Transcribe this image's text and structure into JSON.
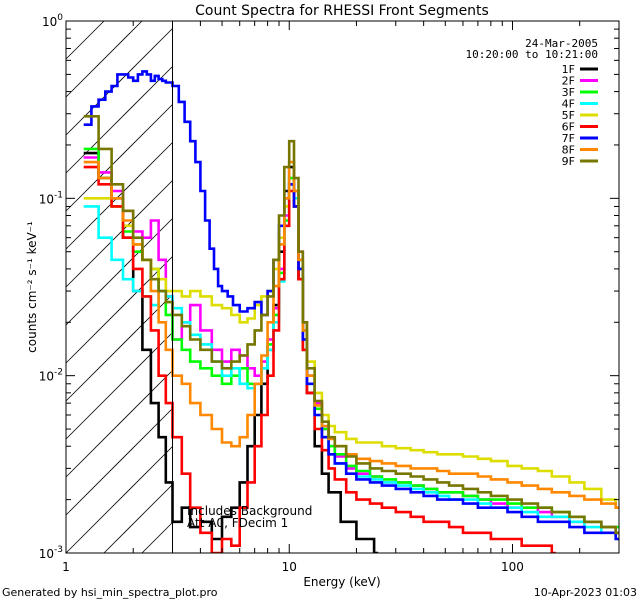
{
  "chart_data": {
    "type": "line",
    "title": "Count Spectra for RHESSI Front Segments",
    "date": "24-Mar-2005",
    "time_range": "10:20:00 to 10:21:00",
    "xlabel": "Energy (keV)",
    "ylabel": "counts cm⁻² s⁻¹ keV⁻¹",
    "xscale": "log",
    "yscale": "log",
    "xlim": [
      1,
      300
    ],
    "ylim": [
      0.001,
      1
    ],
    "x_tick_labels": [
      {
        "value": 1,
        "label": "1"
      },
      {
        "value": 10,
        "label": "10"
      },
      {
        "value": 100,
        "label": "100"
      }
    ],
    "y_tick_labels": [
      {
        "exp": 0,
        "mantissa": "10",
        "sup": "0"
      },
      {
        "exp": -1,
        "mantissa": "10",
        "sup": "-1"
      },
      {
        "exp": -2,
        "mantissa": "10",
        "sup": "-2"
      },
      {
        "exp": -3,
        "mantissa": "10",
        "sup": "-3"
      }
    ],
    "excluded_region": {
      "x_max": 3.0,
      "hatched": true
    },
    "annotations": [
      "Includes Background",
      "Att A0, FDecim 1"
    ],
    "footer_left": "Generated by hsi_min_spectra_plot.pro",
    "footer_right": "10-Apr-2023 01:03",
    "legend_position": "top-right",
    "series": [
      {
        "name": "1F",
        "color": "#000000",
        "x": [
          1.2,
          1.4,
          1.6,
          1.8,
          2.0,
          2.2,
          2.4,
          2.6,
          2.8,
          3.0,
          3.3,
          3.6,
          4.0,
          4.5,
          5.0,
          5.5,
          6.0,
          6.5,
          7.0,
          7.5,
          8.0,
          8.5,
          9.0,
          9.5,
          10.0,
          10.5,
          11.0,
          11.5,
          12.0,
          13.0,
          14.0,
          15.0,
          17.0,
          20.0,
          24.0
        ],
        "y": [
          0.18,
          0.13,
          0.1,
          0.06,
          0.03,
          0.014,
          0.007,
          0.0045,
          0.0025,
          0.0015,
          0.0018,
          0.0014,
          0.0015,
          0.0012,
          0.0016,
          0.0018,
          0.0025,
          0.004,
          0.006,
          0.009,
          0.014,
          0.025,
          0.05,
          0.11,
          0.15,
          0.09,
          0.035,
          0.014,
          0.008,
          0.004,
          0.0028,
          0.0022,
          0.0015,
          0.0012,
          0.001
        ]
      },
      {
        "name": "2F",
        "color": "#ff00ff",
        "x": [
          1.2,
          1.4,
          1.6,
          1.8,
          2.0,
          2.2,
          2.4,
          2.6,
          2.8,
          3.0,
          3.3,
          3.6,
          4.0,
          4.5,
          5.0,
          5.5,
          6.0,
          6.5,
          7.0,
          7.5,
          8.0,
          8.5,
          9.0,
          9.5,
          10.0,
          10.5,
          11.0,
          11.5,
          12.0,
          13.0,
          14.0,
          15.0,
          16.0,
          18.0,
          20.0,
          23.0,
          26.0,
          30.0,
          35.0,
          40.0,
          46.0,
          52.0,
          60.0,
          70.0,
          80.0,
          95.0,
          110.0,
          130.0,
          150.0,
          180.0,
          210.0,
          250.0,
          290.0
        ],
        "y": [
          0.17,
          0.14,
          0.11,
          0.085,
          0.065,
          0.06,
          0.075,
          0.045,
          0.028,
          0.016,
          0.02,
          0.025,
          0.018,
          0.014,
          0.012,
          0.014,
          0.013,
          0.011,
          0.01,
          0.012,
          0.016,
          0.024,
          0.04,
          0.08,
          0.12,
          0.11,
          0.05,
          0.02,
          0.01,
          0.007,
          0.005,
          0.004,
          0.0035,
          0.003,
          0.0028,
          0.0027,
          0.0025,
          0.0025,
          0.0024,
          0.0023,
          0.0022,
          0.0022,
          0.0021,
          0.002,
          0.0019,
          0.0018,
          0.0018,
          0.0017,
          0.0016,
          0.0015,
          0.0015,
          0.0014,
          0.0013
        ]
      },
      {
        "name": "3F",
        "color": "#00ff00",
        "x": [
          1.2,
          1.4,
          1.6,
          1.8,
          2.0,
          2.2,
          2.4,
          2.6,
          2.8,
          3.0,
          3.3,
          3.6,
          4.0,
          4.5,
          5.0,
          5.5,
          6.0,
          6.5,
          7.0,
          7.5,
          8.0,
          8.5,
          9.0,
          9.5,
          10.0,
          10.5,
          11.0,
          11.5,
          12.0,
          13.0,
          14.0,
          15.0,
          16.0,
          18.0,
          20.0,
          23.0,
          26.0,
          30.0,
          35.0,
          40.0,
          46.0,
          52.0,
          60.0,
          70.0,
          80.0,
          95.0,
          110.0,
          130.0,
          150.0,
          180.0,
          210.0,
          250.0,
          290.0
        ],
        "y": [
          0.19,
          0.13,
          0.09,
          0.065,
          0.05,
          0.045,
          0.04,
          0.03,
          0.022,
          0.016,
          0.014,
          0.012,
          0.011,
          0.01,
          0.009,
          0.01,
          0.011,
          0.009,
          0.009,
          0.011,
          0.015,
          0.022,
          0.038,
          0.075,
          0.13,
          0.11,
          0.045,
          0.018,
          0.01,
          0.0065,
          0.005,
          0.004,
          0.0036,
          0.0031,
          0.0029,
          0.0027,
          0.0026,
          0.0025,
          0.0024,
          0.0023,
          0.0022,
          0.0022,
          0.0021,
          0.002,
          0.002,
          0.0019,
          0.0018,
          0.0018,
          0.0017,
          0.0016,
          0.0015,
          0.0014,
          0.0014
        ]
      },
      {
        "name": "4F",
        "color": "#00ffff",
        "x": [
          1.2,
          1.4,
          1.6,
          1.8,
          2.0,
          2.2,
          2.4,
          2.6,
          2.8,
          3.0,
          3.3,
          3.6,
          4.0,
          4.5,
          5.0,
          5.5,
          6.0,
          6.5,
          7.0,
          7.5,
          8.0,
          8.5,
          9.0,
          9.5,
          10.0,
          10.5,
          11.0,
          11.5,
          12.0,
          13.0,
          14.0,
          15.0,
          16.0,
          18.0,
          20.0,
          23.0,
          26.0,
          30.0,
          35.0,
          40.0,
          46.0,
          52.0,
          60.0,
          70.0,
          80.0,
          95.0,
          110.0,
          130.0,
          150.0,
          180.0,
          210.0,
          250.0
        ],
        "y": [
          0.09,
          0.06,
          0.045,
          0.035,
          0.03,
          0.028,
          0.025,
          0.03,
          0.028,
          0.024,
          0.02,
          0.017,
          0.015,
          0.012,
          0.01,
          0.011,
          0.009,
          0.0085,
          0.009,
          0.011,
          0.014,
          0.02,
          0.034,
          0.07,
          0.12,
          0.1,
          0.04,
          0.016,
          0.009,
          0.006,
          0.0045,
          0.0036,
          0.0032,
          0.0028,
          0.0027,
          0.0026,
          0.0025,
          0.0024,
          0.0023,
          0.0022,
          0.0021,
          0.002,
          0.002,
          0.0019,
          0.0018,
          0.0018,
          0.0017,
          0.0016,
          0.0016,
          0.0015,
          0.0014,
          0.0013
        ]
      },
      {
        "name": "5F",
        "color": "#dddd00",
        "x": [
          1.2,
          1.4,
          1.6,
          1.8,
          2.0,
          2.2,
          2.4,
          2.6,
          2.8,
          3.0,
          3.3,
          3.6,
          4.0,
          4.5,
          5.0,
          5.5,
          6.0,
          6.5,
          7.0,
          7.5,
          8.0,
          8.5,
          9.0,
          9.5,
          10.0,
          10.5,
          11.0,
          11.5,
          12.0,
          13.0,
          14.0,
          15.0,
          16.0,
          18.0,
          20.0,
          23.0,
          26.0,
          30.0,
          35.0,
          40.0,
          46.0,
          52.0,
          60.0,
          70.0,
          80.0,
          95.0,
          110.0,
          130.0,
          150.0,
          180.0,
          210.0,
          250.0,
          290.0
        ],
        "y": [
          0.1,
          0.1,
          0.09,
          0.07,
          0.055,
          0.045,
          0.04,
          0.035,
          0.03,
          0.03,
          0.028,
          0.03,
          0.028,
          0.025,
          0.024,
          0.022,
          0.02,
          0.021,
          0.025,
          0.028,
          0.03,
          0.04,
          0.06,
          0.09,
          0.11,
          0.09,
          0.045,
          0.02,
          0.012,
          0.008,
          0.006,
          0.0052,
          0.0048,
          0.0044,
          0.0042,
          0.0042,
          0.004,
          0.0039,
          0.0038,
          0.0037,
          0.0036,
          0.0036,
          0.0035,
          0.0034,
          0.0033,
          0.0031,
          0.003,
          0.0029,
          0.0027,
          0.0025,
          0.0023,
          0.002,
          0.0018
        ]
      },
      {
        "name": "6F",
        "color": "#ff0000",
        "x": [
          1.2,
          1.4,
          1.6,
          1.8,
          2.0,
          2.2,
          2.4,
          2.6,
          2.8,
          3.0,
          3.3,
          3.6,
          4.0,
          4.5,
          5.0,
          5.5,
          6.0,
          6.5,
          7.0,
          7.5,
          8.0,
          8.5,
          9.0,
          9.5,
          10.0,
          10.5,
          11.0,
          11.5,
          12.0,
          13.0,
          14.0,
          15.0,
          16.0,
          18.0,
          20.0,
          23.0,
          26.0,
          30.0,
          35.0,
          40.0,
          46.0,
          52.0,
          60.0,
          70.0,
          80.0,
          95.0,
          110.0,
          130.0,
          150.0
        ],
        "y": [
          0.15,
          0.12,
          0.09,
          0.06,
          0.04,
          0.028,
          0.018,
          0.01,
          0.007,
          0.0045,
          0.0028,
          0.0018,
          0.0013,
          0.001,
          0.0012,
          0.0011,
          0.0018,
          0.0025,
          0.004,
          0.006,
          0.01,
          0.018,
          0.035,
          0.07,
          0.11,
          0.09,
          0.035,
          0.014,
          0.008,
          0.005,
          0.0038,
          0.003,
          0.0026,
          0.0022,
          0.002,
          0.0019,
          0.0018,
          0.0017,
          0.0016,
          0.0015,
          0.0015,
          0.0014,
          0.0013,
          0.0013,
          0.0012,
          0.0012,
          0.0011,
          0.0011,
          0.001
        ]
      },
      {
        "name": "7F",
        "color": "#0000ff",
        "x": [
          1.2,
          1.3,
          1.4,
          1.5,
          1.6,
          1.7,
          1.8,
          1.9,
          2.0,
          2.1,
          2.2,
          2.3,
          2.4,
          2.5,
          2.6,
          2.7,
          2.8,
          3.0,
          3.2,
          3.4,
          3.6,
          3.8,
          4.0,
          4.2,
          4.4,
          4.6,
          4.8,
          5.0,
          5.3,
          5.6,
          6.0,
          6.5,
          7.0,
          7.5,
          8.0,
          8.5,
          9.0,
          9.5,
          10.0,
          10.5,
          11.0,
          11.5,
          12.0,
          13.0,
          14.0,
          15.0,
          16.0,
          18.0,
          20.0,
          23.0,
          26.0,
          30.0,
          35.0,
          40.0,
          46.0,
          52.0,
          60.0,
          70.0,
          80.0,
          95.0,
          110.0,
          130.0,
          150.0,
          180.0,
          210.0,
          250.0,
          290.0
        ],
        "y": [
          0.26,
          0.33,
          0.36,
          0.4,
          0.43,
          0.5,
          0.5,
          0.48,
          0.46,
          0.5,
          0.52,
          0.5,
          0.46,
          0.49,
          0.47,
          0.46,
          0.45,
          0.43,
          0.35,
          0.27,
          0.21,
          0.16,
          0.11,
          0.075,
          0.052,
          0.04,
          0.032,
          0.03,
          0.028,
          0.025,
          0.023,
          0.024,
          0.026,
          0.022,
          0.03,
          0.045,
          0.07,
          0.1,
          0.12,
          0.09,
          0.04,
          0.016,
          0.009,
          0.006,
          0.0045,
          0.0036,
          0.0032,
          0.0028,
          0.0026,
          0.0025,
          0.0024,
          0.0023,
          0.0022,
          0.0021,
          0.002,
          0.002,
          0.0019,
          0.0018,
          0.0018,
          0.0017,
          0.0016,
          0.0015,
          0.0015,
          0.0014,
          0.0013,
          0.0013,
          0.0012
        ]
      },
      {
        "name": "8F",
        "color": "#ff8800",
        "x": [
          1.2,
          1.4,
          1.6,
          1.8,
          2.0,
          2.2,
          2.4,
          2.6,
          2.8,
          3.0,
          3.3,
          3.6,
          4.0,
          4.5,
          5.0,
          5.5,
          6.0,
          6.5,
          7.0,
          7.5,
          8.0,
          8.5,
          9.0,
          9.5,
          10.0,
          10.5,
          11.0,
          11.5,
          12.0,
          13.0,
          14.0,
          15.0,
          16.0,
          18.0,
          20.0,
          23.0,
          26.0,
          30.0,
          35.0,
          40.0,
          46.0,
          52.0,
          60.0,
          70.0,
          80.0,
          95.0,
          110.0,
          130.0,
          150.0,
          180.0,
          210.0,
          250.0,
          290.0
        ],
        "y": [
          0.16,
          0.13,
          0.1,
          0.075,
          0.055,
          0.045,
          0.03,
          0.02,
          0.014,
          0.01,
          0.009,
          0.007,
          0.006,
          0.005,
          0.0042,
          0.004,
          0.0045,
          0.006,
          0.009,
          0.013,
          0.02,
          0.032,
          0.055,
          0.1,
          0.16,
          0.11,
          0.045,
          0.018,
          0.01,
          0.0068,
          0.0052,
          0.0044,
          0.004,
          0.0036,
          0.0034,
          0.0033,
          0.0032,
          0.0031,
          0.003,
          0.003,
          0.0029,
          0.0028,
          0.0028,
          0.0027,
          0.0026,
          0.0025,
          0.0024,
          0.0023,
          0.0022,
          0.0021,
          0.002,
          0.0019,
          0.0018
        ]
      },
      {
        "name": "9F",
        "color": "#777700",
        "x": [
          1.2,
          1.4,
          1.6,
          1.8,
          2.0,
          2.2,
          2.4,
          2.6,
          2.8,
          3.0,
          3.3,
          3.6,
          4.0,
          4.5,
          5.0,
          5.5,
          6.0,
          6.5,
          7.0,
          7.5,
          8.0,
          8.5,
          9.0,
          9.5,
          10.0,
          10.5,
          11.0,
          11.5,
          12.0,
          13.0,
          14.0,
          15.0,
          16.0,
          18.0,
          20.0,
          23.0,
          26.0,
          30.0,
          35.0,
          40.0,
          46.0,
          52.0,
          60.0,
          70.0,
          80.0,
          95.0,
          110.0,
          130.0,
          150.0,
          180.0,
          210.0,
          250.0,
          290.0
        ],
        "y": [
          0.29,
          0.19,
          0.12,
          0.085,
          0.06,
          0.045,
          0.035,
          0.03,
          0.026,
          0.022,
          0.019,
          0.016,
          0.014,
          0.012,
          0.011,
          0.012,
          0.013,
          0.015,
          0.018,
          0.022,
          0.028,
          0.045,
          0.08,
          0.15,
          0.21,
          0.13,
          0.05,
          0.02,
          0.011,
          0.0072,
          0.0055,
          0.0045,
          0.004,
          0.0035,
          0.0032,
          0.003,
          0.0029,
          0.0028,
          0.0027,
          0.0026,
          0.0025,
          0.0024,
          0.0023,
          0.0022,
          0.0021,
          0.002,
          0.0019,
          0.0018,
          0.0017,
          0.0016,
          0.0015,
          0.0014,
          0.0013
        ]
      }
    ]
  }
}
